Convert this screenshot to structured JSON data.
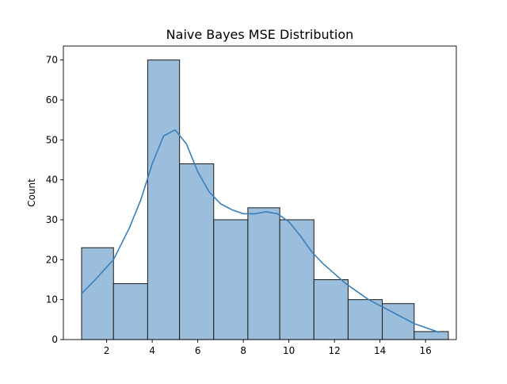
{
  "chart_data": {
    "type": "bar",
    "title": "Naive Bayes MSE Distribution",
    "xlabel": "",
    "ylabel": "Count",
    "xlim": [
      0.1,
      17.35
    ],
    "ylim": [
      0,
      73.5
    ],
    "grid": false,
    "bins": [
      {
        "start": 0.9,
        "end": 2.3,
        "count": 23
      },
      {
        "start": 2.3,
        "end": 3.8,
        "count": 14
      },
      {
        "start": 3.8,
        "end": 5.2,
        "count": 70
      },
      {
        "start": 5.2,
        "end": 6.7,
        "count": 44
      },
      {
        "start": 6.7,
        "end": 8.2,
        "count": 30
      },
      {
        "start": 8.2,
        "end": 9.6,
        "count": 33
      },
      {
        "start": 9.6,
        "end": 11.1,
        "count": 30
      },
      {
        "start": 11.1,
        "end": 12.6,
        "count": 15
      },
      {
        "start": 12.6,
        "end": 14.1,
        "count": 10
      },
      {
        "start": 14.1,
        "end": 15.5,
        "count": 9
      },
      {
        "start": 15.5,
        "end": 17.0,
        "count": 2
      }
    ],
    "xticks": [
      2,
      4,
      6,
      8,
      10,
      12,
      14,
      16
    ],
    "yticks": [
      0,
      10,
      20,
      30,
      40,
      50,
      60,
      70
    ],
    "kde": {
      "x": [
        0.9,
        1.5,
        2.3,
        3.0,
        3.5,
        4.0,
        4.5,
        5.0,
        5.5,
        6.0,
        6.5,
        7.0,
        7.5,
        8.0,
        8.5,
        9.0,
        9.5,
        10.0,
        10.5,
        11.0,
        11.5,
        12.0,
        12.5,
        13.0,
        13.5,
        14.0,
        14.5,
        15.0,
        15.5,
        16.0,
        16.6
      ],
      "y": [
        11.5,
        15,
        20,
        28,
        35,
        44,
        51,
        52.5,
        49,
        42,
        37,
        34,
        32.5,
        31.5,
        31.5,
        32,
        31.5,
        29.5,
        26,
        22,
        19,
        16.5,
        14,
        12,
        10,
        8.5,
        7,
        5.5,
        4,
        3,
        1.8
      ]
    }
  }
}
